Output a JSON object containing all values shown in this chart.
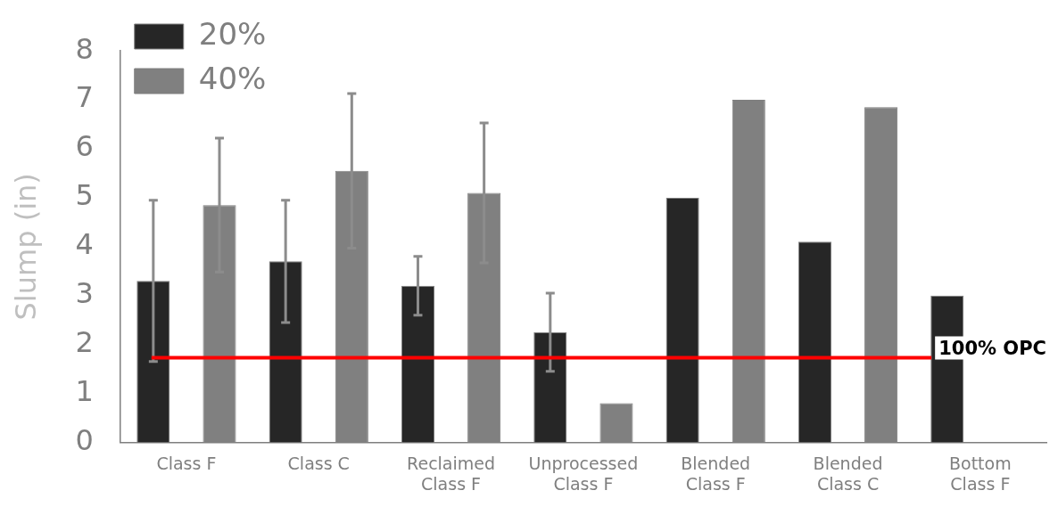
{
  "chart_data": {
    "type": "bar",
    "ylabel": "Slump (in)",
    "categories": [
      "Class F",
      "Class C",
      "Reclaimed Class F",
      "Unprocessed Class F",
      "Blended Class F",
      "Blended Class C",
      "Bottom Class F"
    ],
    "series": [
      {
        "name": "20%",
        "color": "#262626",
        "values": [
          3.3,
          3.7,
          3.2,
          2.25,
          5.0,
          4.1,
          3.0
        ],
        "errors": [
          1.65,
          1.25,
          0.6,
          0.8,
          null,
          null,
          null
        ]
      },
      {
        "name": "40%",
        "color": "#808080",
        "values": [
          4.85,
          5.55,
          5.1,
          0.8,
          7.0,
          6.85,
          null
        ],
        "errors": [
          1.37,
          1.58,
          1.43,
          null,
          null,
          null,
          null
        ]
      }
    ],
    "ylim": [
      0,
      8
    ],
    "yticks": [
      0,
      1,
      2,
      3,
      4,
      5,
      6,
      7,
      8
    ],
    "ref_lines": [
      {
        "axis": "y",
        "value": 1.73,
        "label": "100% OPC",
        "color": "#ff0000"
      }
    ],
    "legend": "top left",
    "grid": false
  }
}
